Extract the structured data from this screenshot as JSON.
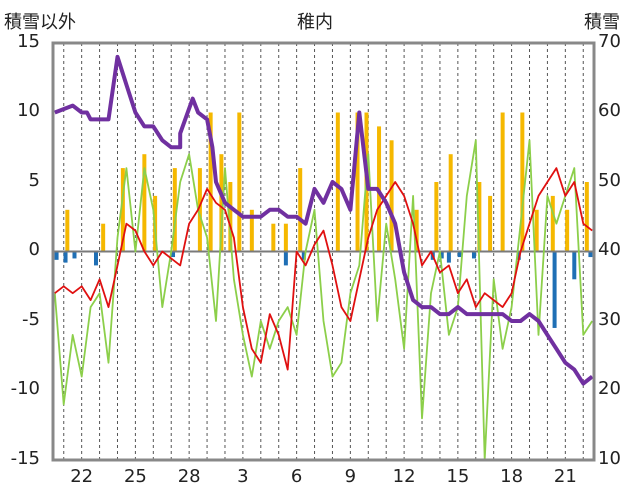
{
  "chart_data": {
    "type": "line",
    "title": "稚内",
    "ylabel_left": "積雪以外",
    "ylabel_right": "積雪",
    "ylim_left": [
      -15,
      15
    ],
    "ylim_right": [
      10,
      70
    ],
    "yticks_left": [
      "15",
      "10",
      "5",
      "0",
      "-5",
      "-10",
      "-15"
    ],
    "yticks_right": [
      "70",
      "60",
      "50",
      "40",
      "30",
      "20",
      "10"
    ],
    "xticks": [
      {
        "day": 0,
        "label": "22"
      },
      {
        "day": 3,
        "label": "25"
      },
      {
        "day": 6,
        "label": "28"
      },
      {
        "day": 9,
        "label": "3"
      },
      {
        "day": 12,
        "label": "6"
      },
      {
        "day": 15,
        "label": "9"
      },
      {
        "day": 18,
        "label": "12"
      },
      {
        "day": 21,
        "label": "15"
      },
      {
        "day": 24,
        "label": "18"
      },
      {
        "day": 27,
        "label": "21"
      }
    ],
    "x_range": [
      -1.6,
      28.6
    ],
    "grid": "vertical dashed daily",
    "series": [
      {
        "color": "#e01010",
        "axis": "left",
        "x": [
          -1.5,
          -1,
          -0.5,
          0,
          0.5,
          1,
          1.5,
          2,
          2.5,
          3,
          3.5,
          4,
          4.5,
          5,
          5.5,
          6,
          6.5,
          7,
          7.5,
          8,
          8.5,
          9,
          9.5,
          10,
          10.5,
          11,
          11.5,
          12,
          12.5,
          13,
          13.5,
          14,
          14.5,
          15,
          15.5,
          16,
          16.5,
          17,
          17.5,
          18,
          18.5,
          19,
          19.5,
          20,
          20.5,
          21,
          21.5,
          22,
          22.5,
          23,
          23.5,
          24,
          24.5,
          25,
          25.5,
          26,
          26.5,
          27,
          27.5,
          28,
          28.5
        ],
        "values": [
          -3,
          -2.5,
          -3,
          -2.5,
          -3.5,
          -2,
          -4,
          -1,
          2,
          1.5,
          0,
          -1,
          0,
          -0.5,
          -1,
          2,
          3,
          4.5,
          3.5,
          3,
          1,
          -4,
          -7,
          -8,
          -4.5,
          -6,
          -8.5,
          0,
          -1,
          0.5,
          1.5,
          -1,
          -4,
          -5,
          -2,
          1,
          3,
          4,
          5,
          4,
          2,
          -1,
          0,
          -1.5,
          -1,
          -3,
          -2,
          -4,
          -3,
          -3.5,
          -4,
          -3,
          0,
          2,
          4,
          5,
          6,
          4,
          5,
          2,
          1.5
        ]
      },
      {
        "color": "#8ccf4a",
        "axis": "left",
        "x": [
          -1.5,
          -1,
          -0.5,
          0,
          0.5,
          1,
          1.5,
          2,
          2.5,
          3,
          3.5,
          4,
          4.5,
          5,
          5.5,
          6,
          6.5,
          7,
          7.5,
          8,
          8.5,
          9,
          9.5,
          10,
          10.5,
          11,
          11.5,
          12,
          12.5,
          13,
          13.5,
          14,
          14.5,
          15,
          15.5,
          16,
          16.5,
          17,
          17.5,
          18,
          18.5,
          19,
          19.5,
          20,
          20.5,
          21,
          21.5,
          22,
          22.5,
          23,
          23.5,
          24,
          24.5,
          25,
          25.5,
          26,
          26.5,
          27,
          27.5,
          28,
          28.5
        ],
        "values": [
          -3,
          -11,
          -6,
          -9,
          -4,
          -3,
          -8,
          1,
          6,
          0,
          6,
          3,
          -4,
          0,
          5,
          7,
          3,
          1,
          -5,
          6,
          -2,
          -6,
          -9,
          -5,
          -7,
          -5,
          -4,
          -6,
          0,
          3,
          -5,
          -9,
          -8,
          -3,
          -1,
          7,
          -5,
          2,
          -2,
          -7,
          4,
          -12,
          -3,
          0,
          -6,
          -4,
          4,
          8,
          -15,
          -2,
          -7,
          -4,
          2,
          8,
          -6,
          4,
          2,
          4,
          6,
          -6,
          -5
        ]
      },
      {
        "color": "#7030a0",
        "axis": "right",
        "x": [
          -1.5,
          -0.5,
          0,
          0.3,
          0.5,
          1.5,
          2,
          2.5,
          3,
          3.5,
          4,
          4.5,
          5,
          5.5,
          5.5,
          6.2,
          6.5,
          7,
          7.3,
          7.5,
          8,
          8.5,
          9,
          9.5,
          10,
          10.5,
          11,
          11.5,
          12,
          12.5,
          13,
          13.5,
          14,
          14.5,
          15,
          15.5,
          16,
          16.5,
          17,
          17.5,
          18,
          18.5,
          19,
          19.5,
          20,
          20.5,
          21,
          21.5,
          22,
          22.5,
          23,
          23.5,
          24,
          24.5,
          25,
          25.5,
          26,
          26.5,
          27,
          27.5,
          28,
          28.5
        ],
        "values": [
          60,
          61,
          60,
          60,
          59,
          59,
          68,
          64,
          60,
          58,
          58,
          56,
          55,
          55,
          57,
          62,
          60,
          59,
          55,
          50,
          47,
          46,
          45,
          45,
          45,
          46,
          46,
          45,
          45,
          44,
          49,
          47,
          50,
          49,
          46,
          60,
          49,
          49,
          47,
          44,
          37,
          33,
          32,
          32,
          31,
          31,
          32,
          31,
          31,
          31,
          31,
          31,
          30,
          30,
          31,
          30,
          28,
          26,
          24,
          23,
          21,
          22
        ]
      },
      {
        "color": "#f5b800",
        "axis": "left",
        "kind": "bars-positive",
        "x": [
          -0.8,
          1.2,
          2.3,
          3.5,
          4.1,
          5.2,
          6.6,
          7.2,
          7.8,
          8.3,
          8.8,
          9.5,
          10.7,
          11.4,
          12.2,
          14.3,
          15.4,
          15.9,
          16.6,
          17.3,
          18.7,
          19.8,
          20.6,
          22.2,
          22.8,
          23.5,
          24.6,
          25.4,
          26.3,
          27.1,
          28.2
        ],
        "values": [
          3,
          2,
          6,
          7,
          4,
          6,
          6,
          10,
          7,
          5,
          10,
          3,
          2,
          2,
          6,
          10,
          10,
          10,
          9,
          8,
          3,
          5,
          7,
          5,
          4,
          10,
          10,
          3,
          4,
          3,
          5
        ]
      },
      {
        "color": "#1f6fb5",
        "axis": "left",
        "kind": "bars-negative",
        "x": [
          -1.4,
          -0.9,
          -0.4,
          0.8,
          5.1,
          11.4,
          12.4,
          19.6,
          20.1,
          20.5,
          21.1,
          21.9,
          24.4,
          26.4,
          27.5,
          28.4
        ],
        "values": [
          -0.6,
          -0.8,
          -0.5,
          -1,
          -0.4,
          -1,
          -0.6,
          -0.6,
          -0.5,
          -0.8,
          -0.4,
          -0.5,
          -0.6,
          -5.5,
          -2,
          -0.4
        ]
      }
    ]
  }
}
